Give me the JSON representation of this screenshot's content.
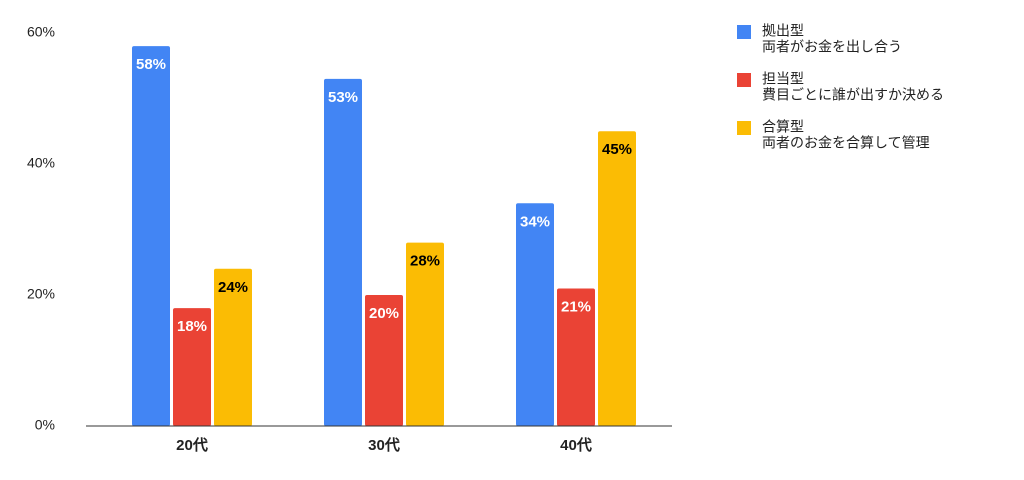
{
  "chart_data": {
    "type": "bar",
    "categories": [
      "20代",
      "30代",
      "40代"
    ],
    "series": [
      {
        "name": "拠出型",
        "description": "両者がお金を出し合う",
        "color": "#4285f4",
        "label_color": "#ffffff",
        "values": [
          58,
          53,
          34
        ],
        "value_labels": [
          "58%",
          "53%",
          "34%"
        ]
      },
      {
        "name": "担当型",
        "description": "費目ごとに誰が出すか決める",
        "color": "#ea4335",
        "label_color": "#ffffff",
        "values": [
          18,
          20,
          21
        ],
        "value_labels": [
          "18%",
          "20%",
          "21%"
        ]
      },
      {
        "name": "合算型",
        "description": "両者のお金を合算して管理",
        "color": "#fbbc04",
        "label_color": "#000000",
        "values": [
          24,
          28,
          45
        ],
        "value_labels": [
          "24%",
          "28%",
          "45%"
        ]
      }
    ],
    "ylim": [
      0,
      60
    ],
    "yticks": [
      {
        "value": 0,
        "label": "0%"
      },
      {
        "value": 20,
        "label": "20%"
      },
      {
        "value": 40,
        "label": "40%"
      },
      {
        "value": 60,
        "label": "60%"
      }
    ],
    "grid": false,
    "legend": "right"
  }
}
